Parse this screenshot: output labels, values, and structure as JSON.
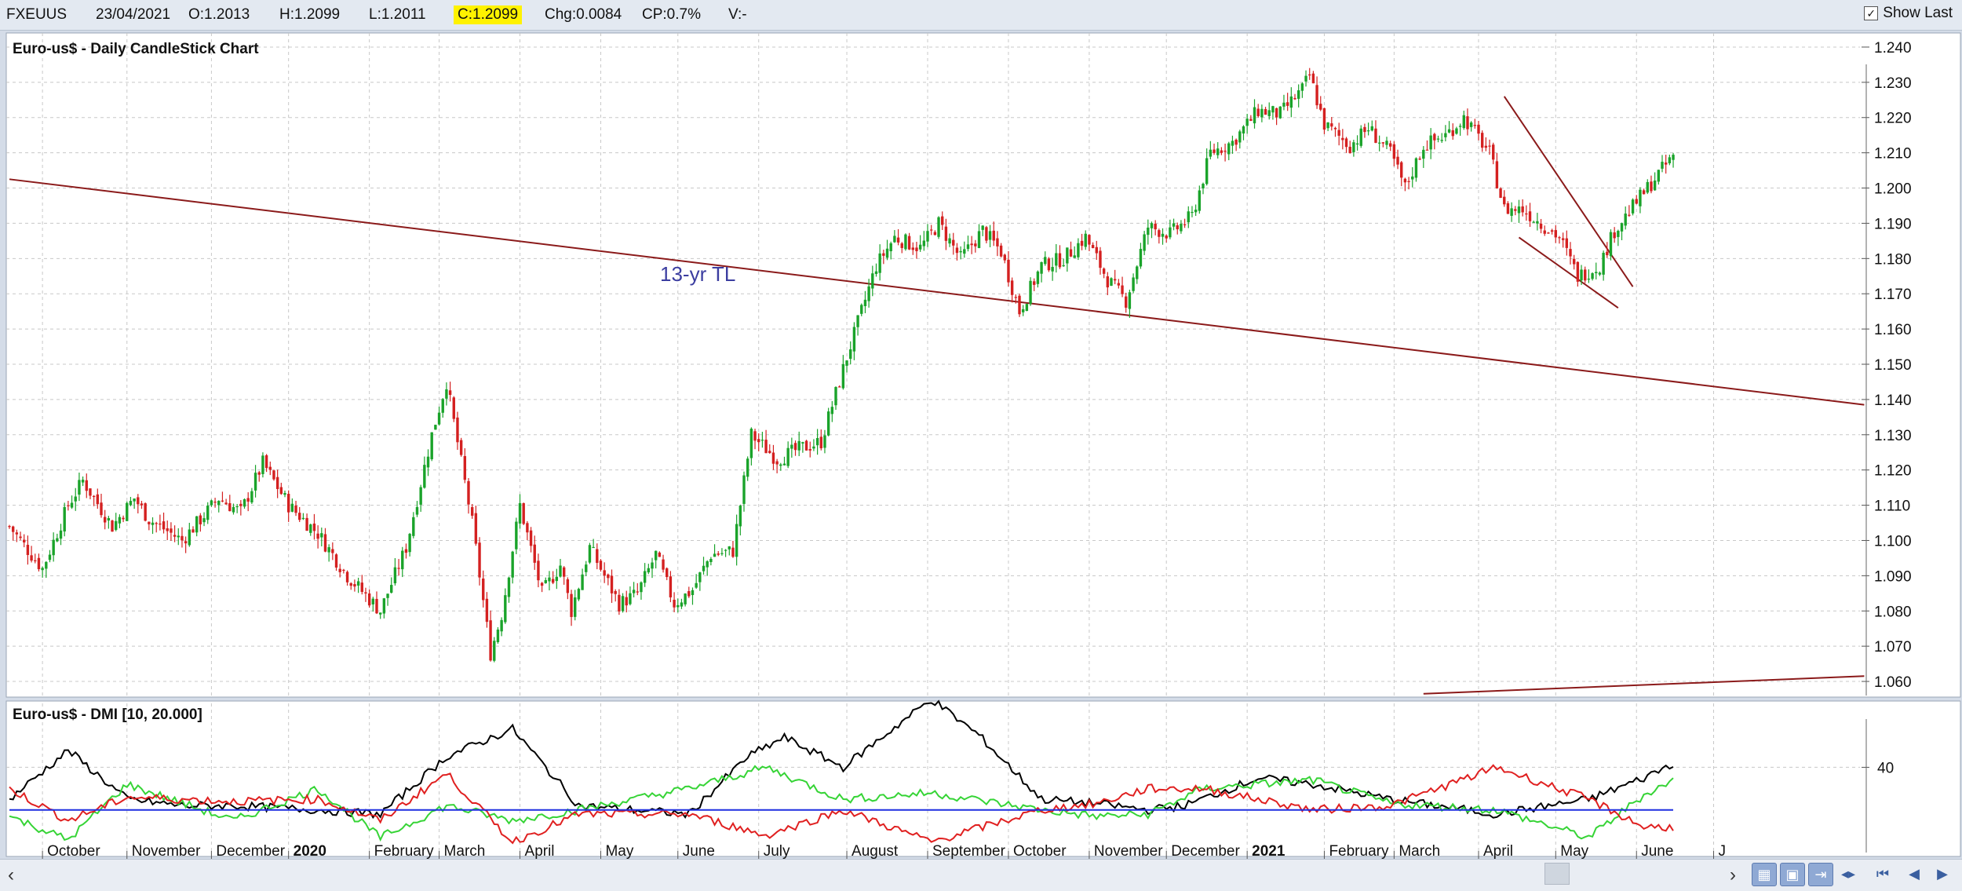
{
  "toolbar": {
    "symbol": "FXEUUS",
    "date": "23/04/2021",
    "open": "O:1.2013",
    "high": "H:1.2099",
    "low": "L:1.2011",
    "close": "C:1.2099",
    "change": "Chg:0.0084",
    "change_pct": "CP:0.7%",
    "volume": "V:-",
    "show_last_label": "Show Last",
    "show_last_checked": true
  },
  "chart_data": [
    {
      "type": "candlestick",
      "title": "Euro-us$ - Daily CandleStick Chart",
      "ylim": [
        1.056,
        1.244
      ],
      "yticks": [
        "1.060",
        "1.070",
        "1.080",
        "1.090",
        "1.100",
        "1.110",
        "1.120",
        "1.130",
        "1.140",
        "1.150",
        "1.160",
        "1.170",
        "1.180",
        "1.190",
        "1.200",
        "1.210",
        "1.220",
        "1.230",
        "1.240"
      ],
      "anchors": [
        [
          0,
          1.104
        ],
        [
          9,
          1.092
        ],
        [
          16,
          1.11
        ],
        [
          20,
          1.117
        ],
        [
          28,
          1.104
        ],
        [
          34,
          1.112
        ],
        [
          38,
          1.106
        ],
        [
          47,
          1.1
        ],
        [
          57,
          1.112
        ],
        [
          63,
          1.108
        ],
        [
          69,
          1.122
        ],
        [
          76,
          1.11
        ],
        [
          84,
          1.102
        ],
        [
          92,
          1.09
        ],
        [
          101,
          1.08
        ],
        [
          108,
          1.098
        ],
        [
          115,
          1.13
        ],
        [
          119,
          1.145
        ],
        [
          126,
          1.105
        ],
        [
          131,
          1.068
        ],
        [
          134,
          1.079
        ],
        [
          139,
          1.11
        ],
        [
          145,
          1.085
        ],
        [
          150,
          1.093
        ],
        [
          153,
          1.08
        ],
        [
          158,
          1.098
        ],
        [
          166,
          1.082
        ],
        [
          171,
          1.085
        ],
        [
          176,
          1.096
        ],
        [
          181,
          1.082
        ],
        [
          186,
          1.086
        ],
        [
          191,
          1.096
        ],
        [
          197,
          1.097
        ],
        [
          202,
          1.13
        ],
        [
          209,
          1.123
        ],
        [
          215,
          1.126
        ],
        [
          221,
          1.128
        ],
        [
          228,
          1.152
        ],
        [
          236,
          1.178
        ],
        [
          241,
          1.186
        ],
        [
          248,
          1.183
        ],
        [
          253,
          1.19
        ],
        [
          259,
          1.18
        ],
        [
          265,
          1.188
        ],
        [
          270,
          1.182
        ],
        [
          275,
          1.165
        ],
        [
          281,
          1.178
        ],
        [
          287,
          1.18
        ],
        [
          293,
          1.186
        ],
        [
          299,
          1.174
        ],
        [
          304,
          1.168
        ],
        [
          310,
          1.189
        ],
        [
          316,
          1.187
        ],
        [
          322,
          1.192
        ],
        [
          327,
          1.21
        ],
        [
          333,
          1.213
        ],
        [
          340,
          1.222
        ],
        [
          346,
          1.221
        ],
        [
          352,
          1.228
        ],
        [
          354,
          1.232
        ],
        [
          358,
          1.218
        ],
        [
          365,
          1.212
        ],
        [
          370,
          1.217
        ],
        [
          376,
          1.21
        ],
        [
          380,
          1.2
        ],
        [
          385,
          1.212
        ],
        [
          391,
          1.215
        ],
        [
          396,
          1.22
        ],
        [
          403,
          1.21
        ],
        [
          407,
          1.194
        ],
        [
          412,
          1.194
        ],
        [
          417,
          1.19
        ],
        [
          422,
          1.186
        ],
        [
          427,
          1.175
        ],
        [
          433,
          1.178
        ],
        [
          437,
          1.188
        ],
        [
          443,
          1.196
        ],
        [
          449,
          1.204
        ],
        [
          453,
          1.209
        ]
      ],
      "dates": "23/04/2021",
      "up_color": "#1aa32a",
      "down_color": "#d42020",
      "annotations": [
        {
          "text": "13-yr TL",
          "color": "#3b3da0"
        }
      ],
      "trendlines": [
        {
          "name": "13-yr-trendline",
          "from": [
            0,
            1.2025
          ],
          "to": [
            505,
            1.1385
          ],
          "color": "#8b1a1a"
        },
        {
          "name": "channel-upper",
          "from": [
            407,
            1.226
          ],
          "to": [
            442,
            1.172
          ],
          "color": "#8b1a1a"
        },
        {
          "name": "channel-lower",
          "from": [
            411,
            1.186
          ],
          "to": [
            438,
            1.166
          ],
          "color": "#8b1a1a"
        },
        {
          "name": "bottom-trendline",
          "from": [
            385,
            1.0565
          ],
          "to": [
            505,
            1.0615
          ],
          "color": "#8b1a1a"
        }
      ],
      "x_labels": [
        "October",
        "November",
        "December",
        "2020",
        "February",
        "March",
        "April",
        "May",
        "June",
        "July",
        "August",
        "September",
        "October",
        "November",
        "December",
        "2021",
        "February",
        "March",
        "April",
        "May",
        "June",
        "J"
      ],
      "x_label_bold": [
        "2020",
        "2021"
      ]
    },
    {
      "type": "line",
      "title": "Euro-us$ - DMI [10, 20.000]",
      "ylim": [
        0,
        70
      ],
      "yticks": [
        "40"
      ],
      "threshold": 20,
      "series": [
        {
          "color": "#000000",
          "anchors": [
            [
              0,
              25
            ],
            [
              16,
              48
            ],
            [
              32,
              25
            ],
            [
              47,
              22
            ],
            [
              61,
              22
            ],
            [
              84,
              20
            ],
            [
              101,
              18
            ],
            [
              119,
              45
            ],
            [
              137,
              58
            ],
            [
              155,
              22
            ],
            [
              185,
              18
            ],
            [
              201,
              45
            ],
            [
              211,
              54
            ],
            [
              227,
              40
            ],
            [
              251,
              72
            ],
            [
              264,
              55
            ],
            [
              281,
              25
            ],
            [
              296,
              23
            ],
            [
              310,
              20
            ],
            [
              320,
              22
            ],
            [
              340,
              35
            ],
            [
              355,
              32
            ],
            [
              376,
              25
            ],
            [
              405,
              18
            ],
            [
              430,
              25
            ],
            [
              445,
              35
            ],
            [
              453,
              42
            ]
          ]
        },
        {
          "color": "#36d436",
          "anchors": [
            [
              0,
              17
            ],
            [
              16,
              6
            ],
            [
              32,
              32
            ],
            [
              61,
              15
            ],
            [
              84,
              30
            ],
            [
              101,
              7
            ],
            [
              119,
              22
            ],
            [
              137,
              15
            ],
            [
              155,
              20
            ],
            [
              185,
              30
            ],
            [
              206,
              40
            ],
            [
              227,
              25
            ],
            [
              251,
              28
            ],
            [
              281,
              20
            ],
            [
              296,
              17
            ],
            [
              310,
              18
            ],
            [
              325,
              30
            ],
            [
              355,
              34
            ],
            [
              376,
              23
            ],
            [
              405,
              20
            ],
            [
              430,
              7
            ],
            [
              445,
              27
            ],
            [
              453,
              34
            ]
          ]
        },
        {
          "color": "#e02020",
          "anchors": [
            [
              0,
              30
            ],
            [
              16,
              15
            ],
            [
              32,
              26
            ],
            [
              61,
              24
            ],
            [
              84,
              25
            ],
            [
              101,
              15
            ],
            [
              119,
              37
            ],
            [
              137,
              5
            ],
            [
              155,
              18
            ],
            [
              185,
              18
            ],
            [
              206,
              8
            ],
            [
              227,
              20
            ],
            [
              251,
              5
            ],
            [
              281,
              20
            ],
            [
              296,
              23
            ],
            [
              310,
              30
            ],
            [
              325,
              30
            ],
            [
              355,
              20
            ],
            [
              376,
              22
            ],
            [
              405,
              40
            ],
            [
              430,
              25
            ],
            [
              445,
              12
            ],
            [
              453,
              12
            ]
          ]
        },
        {
          "color": "#1f2fe0",
          "anchors": [
            [
              0,
              20
            ],
            [
              453,
              20
            ]
          ]
        }
      ]
    }
  ]
}
